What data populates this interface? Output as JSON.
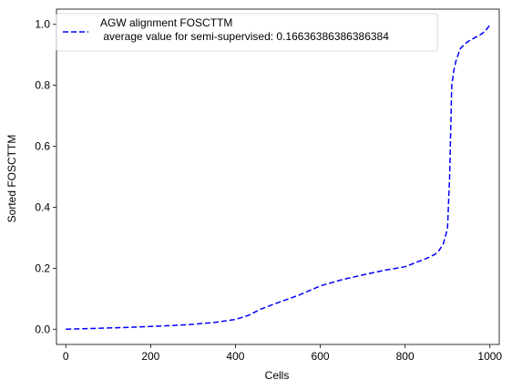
{
  "chart_data": {
    "type": "line",
    "xlabel": "Cells",
    "ylabel": "Sorted FOSCTTM",
    "xlim": [
      -22,
      1022
    ],
    "ylim": [
      -0.05,
      1.05
    ],
    "xticks": [
      0,
      200,
      400,
      600,
      800,
      1000
    ],
    "yticks": [
      0.0,
      0.2,
      0.4,
      0.6,
      0.8,
      1.0
    ],
    "xtick_labels": [
      "0",
      "200",
      "400",
      "600",
      "800",
      "1000"
    ],
    "ytick_labels": [
      "0.0",
      "0.2",
      "0.4",
      "0.6",
      "0.8",
      "1.0"
    ],
    "grid": false,
    "legend_position": "upper-left",
    "series": [
      {
        "name": "AGW alignment FOSCTTM\n average value for semi-supervised: 0.16636386386386384",
        "color": "#0000ff",
        "line_style": "dashed",
        "x": [
          0,
          50,
          100,
          150,
          200,
          250,
          300,
          350,
          400,
          430,
          460,
          500,
          550,
          600,
          650,
          700,
          750,
          800,
          850,
          870,
          880,
          890,
          900,
          905,
          910,
          915,
          920,
          930,
          940,
          950,
          960,
          980,
          990,
          1000
        ],
        "y": [
          0.0,
          0.002,
          0.004,
          0.006,
          0.009,
          0.012,
          0.016,
          0.022,
          0.032,
          0.045,
          0.066,
          0.087,
          0.112,
          0.142,
          0.162,
          0.178,
          0.193,
          0.205,
          0.232,
          0.245,
          0.258,
          0.28,
          0.33,
          0.5,
          0.8,
          0.85,
          0.88,
          0.92,
          0.935,
          0.945,
          0.953,
          0.968,
          0.98,
          0.998
        ]
      }
    ]
  }
}
